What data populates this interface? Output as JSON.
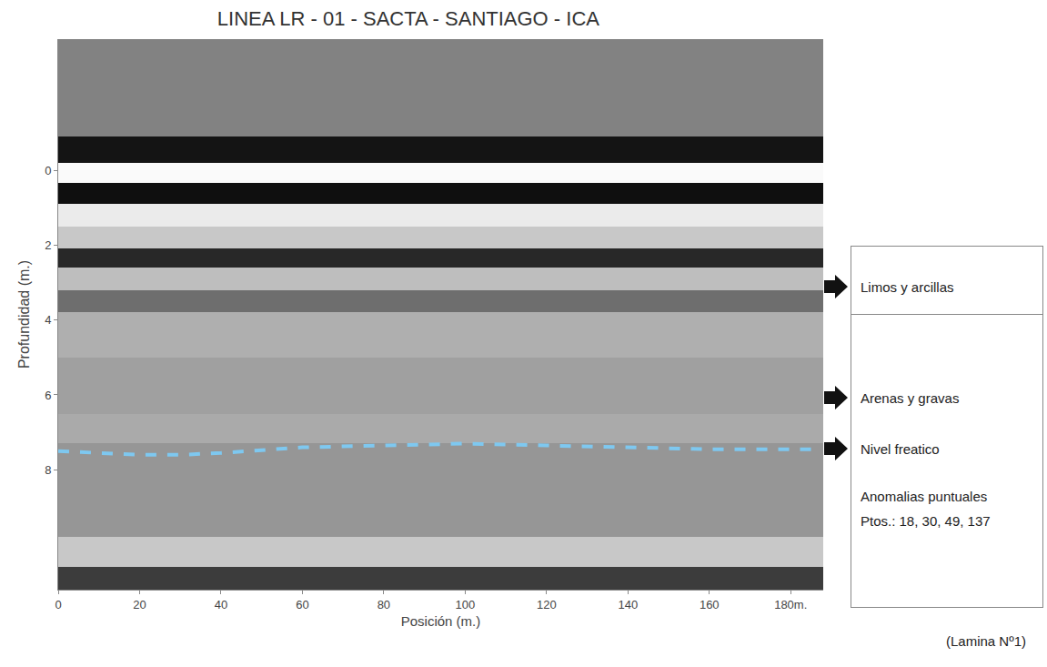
{
  "chart_data": {
    "type": "radargram",
    "title": "LINEA LR - 01 - SACTA - SANTIAGO - ICA",
    "x_label": "Posición (m.)",
    "y_label": "Profundidad (m.)",
    "xlim": [
      0,
      188
    ],
    "xticks": [
      0,
      20,
      40,
      60,
      80,
      100,
      120,
      140,
      160,
      {
        "value": 180,
        "label": "180m."
      }
    ],
    "ylim": [
      -3.5,
      11.2
    ],
    "yticks": [
      0,
      2,
      4,
      6,
      8
    ],
    "grid": false,
    "profile": {
      "depth_edges": [
        -3.5,
        -0.9,
        -0.2,
        0.35,
        0.9,
        1.5,
        2.1,
        2.6,
        3.2,
        3.8,
        5.0,
        6.5,
        7.3,
        9.8,
        10.6,
        11.2
      ],
      "intensity": [
        130,
        20,
        250,
        15,
        235,
        200,
        40,
        190,
        110,
        175,
        160,
        170,
        150,
        200,
        60
      ],
      "zlim": [
        0,
        255
      ]
    },
    "series": [
      {
        "name": "Nivel freatico",
        "color": "#7ec8f0",
        "line_style": "dash",
        "x": [
          0,
          20,
          30,
          40,
          60,
          80,
          100,
          120,
          140,
          160,
          186
        ],
        "values": [
          7.5,
          7.6,
          7.6,
          7.55,
          7.4,
          7.35,
          7.3,
          7.35,
          7.4,
          7.45,
          7.45
        ]
      }
    ],
    "layers": [
      "Limos y arcillas",
      "Arenas y gravas"
    ],
    "note": [
      "Anomalias puntuales",
      "Ptos.: 18, 30, 49, 137"
    ],
    "footer": "(Lamina Nº1)"
  }
}
